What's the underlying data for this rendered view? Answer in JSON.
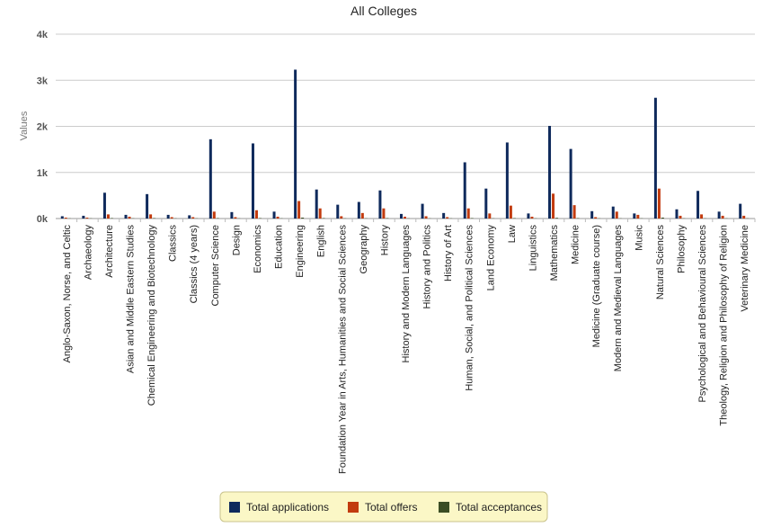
{
  "chart_data": {
    "type": "bar",
    "title": "All Colleges",
    "ylabel": "Values",
    "xlabel": "",
    "ylim": [
      0,
      4000
    ],
    "yticks": [
      0,
      1000,
      2000,
      3000,
      4000
    ],
    "ytick_labels": [
      "0k",
      "1k",
      "2k",
      "3k",
      "4k"
    ],
    "grid": true,
    "legend_position": "bottom",
    "categories": [
      "Anglo-Saxon, Norse, and Celtic",
      "Archaeology",
      "Architecture",
      "Asian and Middle Eastern Studies",
      "Chemical Engineering and Biotechnology",
      "Classics",
      "Classics (4 years)",
      "Computer Science",
      "Design",
      "Economics",
      "Education",
      "Engineering",
      "English",
      "Foundation Year in Arts, Humanities and Social Sciences",
      "Geography",
      "History",
      "History and Modern Languages",
      "History and Politics",
      "History of Art",
      "Human, Social, and Political Sciences",
      "Land Economy",
      "Law",
      "Linguistics",
      "Mathematics",
      "Medicine",
      "Medicine (Graduate course)",
      "Modern and Medieval Languages",
      "Music",
      "Natural Sciences",
      "Philosophy",
      "Psychological and Behavioural Sciences",
      "Theology, Religion and Philosophy of Religion",
      "Veterinary Medicine"
    ],
    "series": [
      {
        "name": "Total applications",
        "color": "#0f2a5c",
        "values": [
          50,
          60,
          560,
          80,
          530,
          80,
          70,
          1720,
          140,
          1630,
          150,
          3230,
          630,
          300,
          360,
          610,
          100,
          320,
          120,
          1220,
          650,
          1650,
          110,
          2010,
          1510,
          160,
          260,
          110,
          2620,
          200,
          600,
          150,
          320
        ]
      },
      {
        "name": "Total offers",
        "color": "#c23b0e",
        "values": [
          20,
          20,
          90,
          40,
          90,
          30,
          30,
          150,
          30,
          180,
          40,
          380,
          220,
          50,
          120,
          220,
          40,
          50,
          30,
          220,
          110,
          280,
          40,
          540,
          290,
          30,
          150,
          80,
          650,
          60,
          90,
          60,
          60
        ]
      },
      {
        "name": "Total acceptances",
        "color": "#3b4d24",
        "values": [
          5,
          5,
          10,
          5,
          10,
          5,
          5,
          10,
          5,
          10,
          5,
          20,
          10,
          5,
          5,
          10,
          5,
          5,
          5,
          10,
          5,
          10,
          5,
          15,
          10,
          5,
          5,
          5,
          20,
          5,
          5,
          5,
          5
        ]
      }
    ]
  }
}
